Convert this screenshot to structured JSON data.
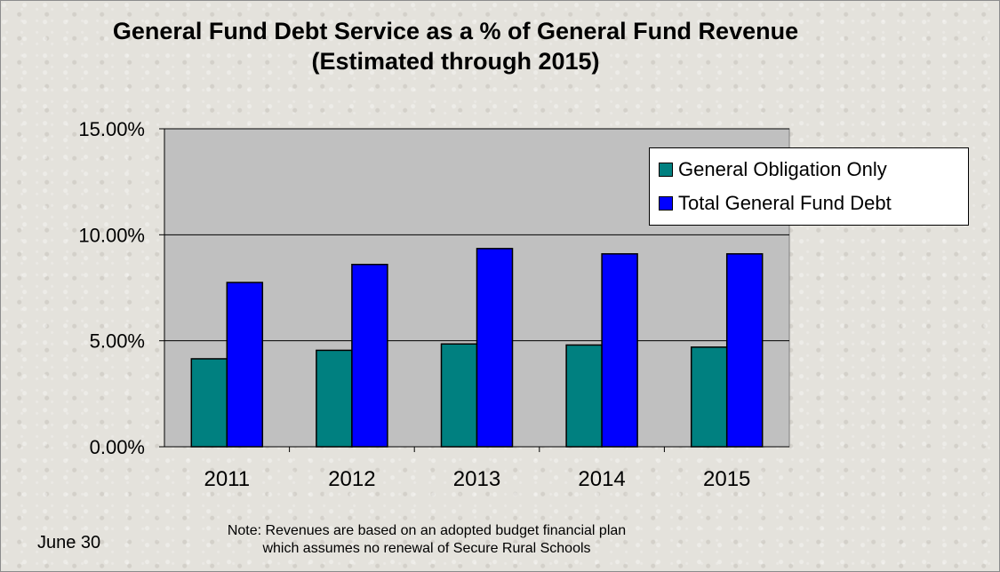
{
  "colors": {
    "background": "#e4e2dc",
    "plot_area": "#c0c0c0",
    "general_obligation": "#008080",
    "total_general_fund": "#0000ff"
  },
  "footer": {
    "date_label": "June 30",
    "note_line1": "Note: Revenues are based on an adopted budget financial  plan",
    "note_line2": "which  assumes no renewal of Secure Rural Schools"
  },
  "chart_data": {
    "type": "bar",
    "title": "General Fund Debt Service as a %  of General Fund Revenue",
    "subtitle": "(Estimated through 2015)",
    "xlabel": "",
    "ylabel": "",
    "categories": [
      "2011",
      "2012",
      "2013",
      "2014",
      "2015"
    ],
    "series": [
      {
        "name": "General Obligation Only",
        "values": [
          4.15,
          4.55,
          4.85,
          4.8,
          4.7
        ]
      },
      {
        "name": "Total General Fund Debt",
        "values": [
          7.75,
          8.6,
          9.35,
          9.1,
          9.1
        ]
      }
    ],
    "ylim": [
      0,
      15
    ],
    "yticks": [
      "0.00%",
      "5.00%",
      "10.00%",
      "15.00%"
    ],
    "grid": true,
    "legend_position": "top-right"
  }
}
